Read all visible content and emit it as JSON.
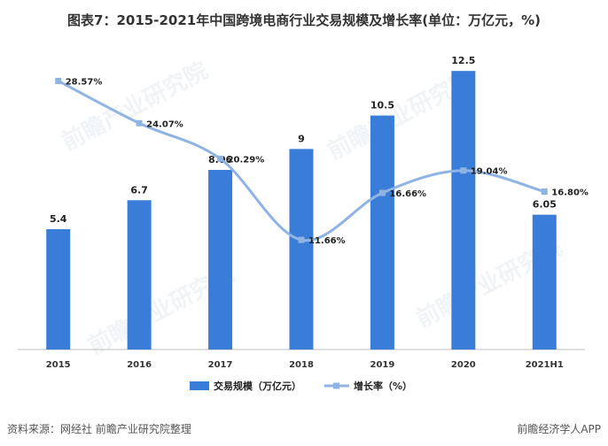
{
  "title": "图表7：2015-2021年中国跨境电商行业交易规模及增长率(单位：万亿元，%)",
  "watermark": "前瞻产业研究院",
  "footer": {
    "source": "资料来源：网经社 前瞻产业研究院整理",
    "brand": "前瞻经济学人APP"
  },
  "colors": {
    "bar": "#3A7DD8",
    "line": "#8FB4E3",
    "axis": "#BFBFBF"
  },
  "chart_data": {
    "type": "bar",
    "categories": [
      "2015",
      "2016",
      "2017",
      "2018",
      "2019",
      "2020",
      "2021H1"
    ],
    "series": [
      {
        "name": "交易规模（万亿元）",
        "type": "bar",
        "values": [
          5.4,
          6.7,
          8.06,
          9,
          10.5,
          12.5,
          6.05
        ],
        "labels": [
          "5.4",
          "6.7",
          "8.06",
          "9",
          "10.5",
          "12.5",
          "6.05"
        ]
      },
      {
        "name": "增长率（%）",
        "type": "line",
        "smooth": true,
        "values": [
          28.57,
          24.07,
          20.29,
          11.66,
          16.66,
          19.04,
          16.8
        ],
        "labels": [
          "28.57%",
          "24.07%",
          "20.29%",
          "11.66%",
          "16.66%",
          "19.04%",
          "16.80%"
        ]
      }
    ],
    "ylim_bar": [
      0,
      13.5
    ],
    "ylim_line": [
      0,
      32
    ],
    "grid": false,
    "legend_position": "bottom"
  }
}
